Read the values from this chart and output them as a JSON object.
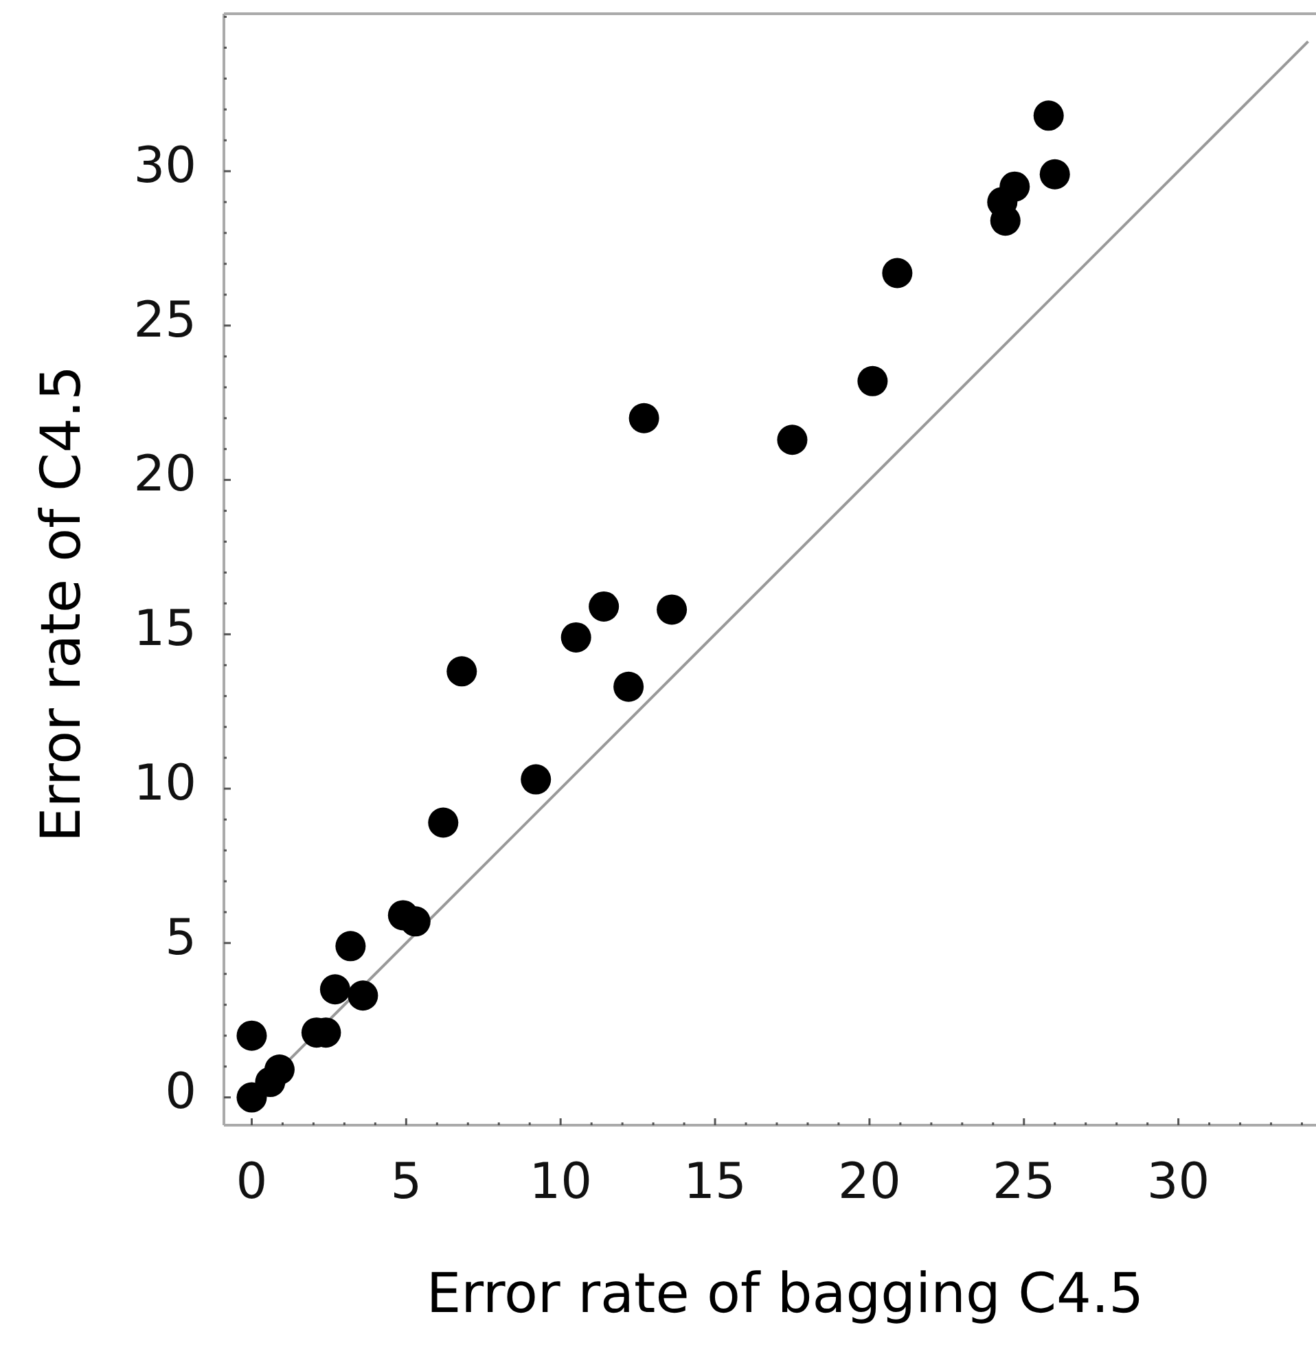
{
  "chart_data": {
    "type": "scatter",
    "xlabel": "Error rate of bagging C4.5",
    "ylabel": "Error rate of C4.5",
    "xlim": [
      -0.9,
      34.5
    ],
    "ylim": [
      -0.9,
      35.1
    ],
    "xticks": [
      0,
      {
        "value": 1,
        "label": null
      },
      {
        "value": 2,
        "label": null
      },
      {
        "value": 3,
        "label": null
      },
      {
        "value": 4,
        "label": null
      },
      5,
      {
        "value": 6,
        "label": null
      },
      {
        "value": 7,
        "label": null
      },
      {
        "value": 8,
        "label": null
      },
      {
        "value": 9,
        "label": null
      },
      10,
      {
        "value": 11,
        "label": null
      },
      {
        "value": 12,
        "label": null
      },
      {
        "value": 13,
        "label": null
      },
      {
        "value": 14,
        "label": null
      },
      15,
      {
        "value": 16,
        "label": null
      },
      {
        "value": 17,
        "label": null
      },
      {
        "value": 18,
        "label": null
      },
      {
        "value": 19,
        "label": null
      },
      20,
      {
        "value": 21,
        "label": null
      },
      {
        "value": 22,
        "label": null
      },
      {
        "value": 23,
        "label": null
      },
      {
        "value": 24,
        "label": null
      },
      25,
      {
        "value": 26,
        "label": null
      },
      {
        "value": 27,
        "label": null
      },
      {
        "value": 28,
        "label": null
      },
      {
        "value": 29,
        "label": null
      },
      30,
      {
        "value": 31,
        "label": null
      },
      {
        "value": 32,
        "label": null
      },
      {
        "value": 33,
        "label": null
      },
      {
        "value": 34,
        "label": null
      }
    ],
    "yticks": [
      0,
      {
        "value": 1,
        "label": null
      },
      {
        "value": 2,
        "label": null
      },
      {
        "value": 3,
        "label": null
      },
      {
        "value": 4,
        "label": null
      },
      5,
      {
        "value": 6,
        "label": null
      },
      {
        "value": 7,
        "label": null
      },
      {
        "value": 8,
        "label": null
      },
      {
        "value": 9,
        "label": null
      },
      10,
      {
        "value": 11,
        "label": null
      },
      {
        "value": 12,
        "label": null
      },
      {
        "value": 13,
        "label": null
      },
      {
        "value": 14,
        "label": null
      },
      15,
      {
        "value": 16,
        "label": null
      },
      {
        "value": 17,
        "label": null
      },
      {
        "value": 18,
        "label": null
      },
      {
        "value": 19,
        "label": null
      },
      20,
      {
        "value": 21,
        "label": null
      },
      {
        "value": 22,
        "label": null
      },
      {
        "value": 23,
        "label": null
      },
      {
        "value": 24,
        "label": null
      },
      25,
      {
        "value": 26,
        "label": null
      },
      {
        "value": 27,
        "label": null
      },
      {
        "value": 28,
        "label": null
      },
      {
        "value": 29,
        "label": null
      },
      30,
      {
        "value": 31,
        "label": null
      },
      {
        "value": 32,
        "label": null
      },
      {
        "value": 33,
        "label": null
      },
      {
        "value": 34,
        "label": null
      },
      {
        "value": 35,
        "label": null
      }
    ],
    "marker": "circle",
    "grid": false,
    "series": [
      {
        "type": "line",
        "color": "#999999",
        "marker": "none",
        "x": [
          0,
          34.2
        ],
        "values": [
          0,
          34.2
        ]
      },
      {
        "color": "#000000",
        "x": [
          0,
          0.6,
          0.9,
          0,
          2.1,
          2.4,
          2.7,
          3.6,
          3.2,
          4.9,
          5.3,
          6.2,
          9.2,
          6.8,
          12.2,
          12.7,
          11.4,
          10.5,
          13.6,
          17.5,
          20.1,
          20.9,
          24.4,
          24.3,
          24.7,
          25.8,
          26.0
        ],
        "values": [
          0,
          0.5,
          0.9,
          2.0,
          2.1,
          2.1,
          3.5,
          3.3,
          4.9,
          5.9,
          5.7,
          8.9,
          10.3,
          13.8,
          13.3,
          22.0,
          15.9,
          14.9,
          15.8,
          21.3,
          23.2,
          26.7,
          28.4,
          29.0,
          29.5,
          31.8,
          29.9
        ]
      }
    ]
  }
}
